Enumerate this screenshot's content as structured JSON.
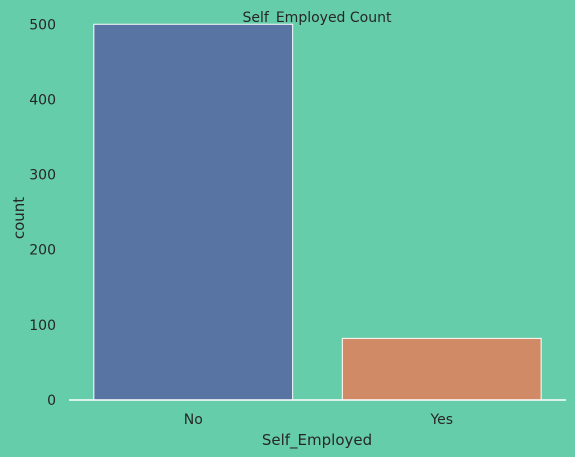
{
  "chart_data": {
    "type": "bar",
    "title": "Self_Employed Count",
    "xlabel": "Self_Employed",
    "ylabel": "count",
    "categories": [
      "No",
      "Yes"
    ],
    "values": [
      500,
      82
    ],
    "ylim": [
      0,
      515
    ],
    "yticks": [
      0,
      100,
      200,
      300,
      400,
      500
    ],
    "colors": [
      "#5874A3",
      "#D18A66"
    ],
    "grid": false,
    "background": "#66CDAA"
  }
}
